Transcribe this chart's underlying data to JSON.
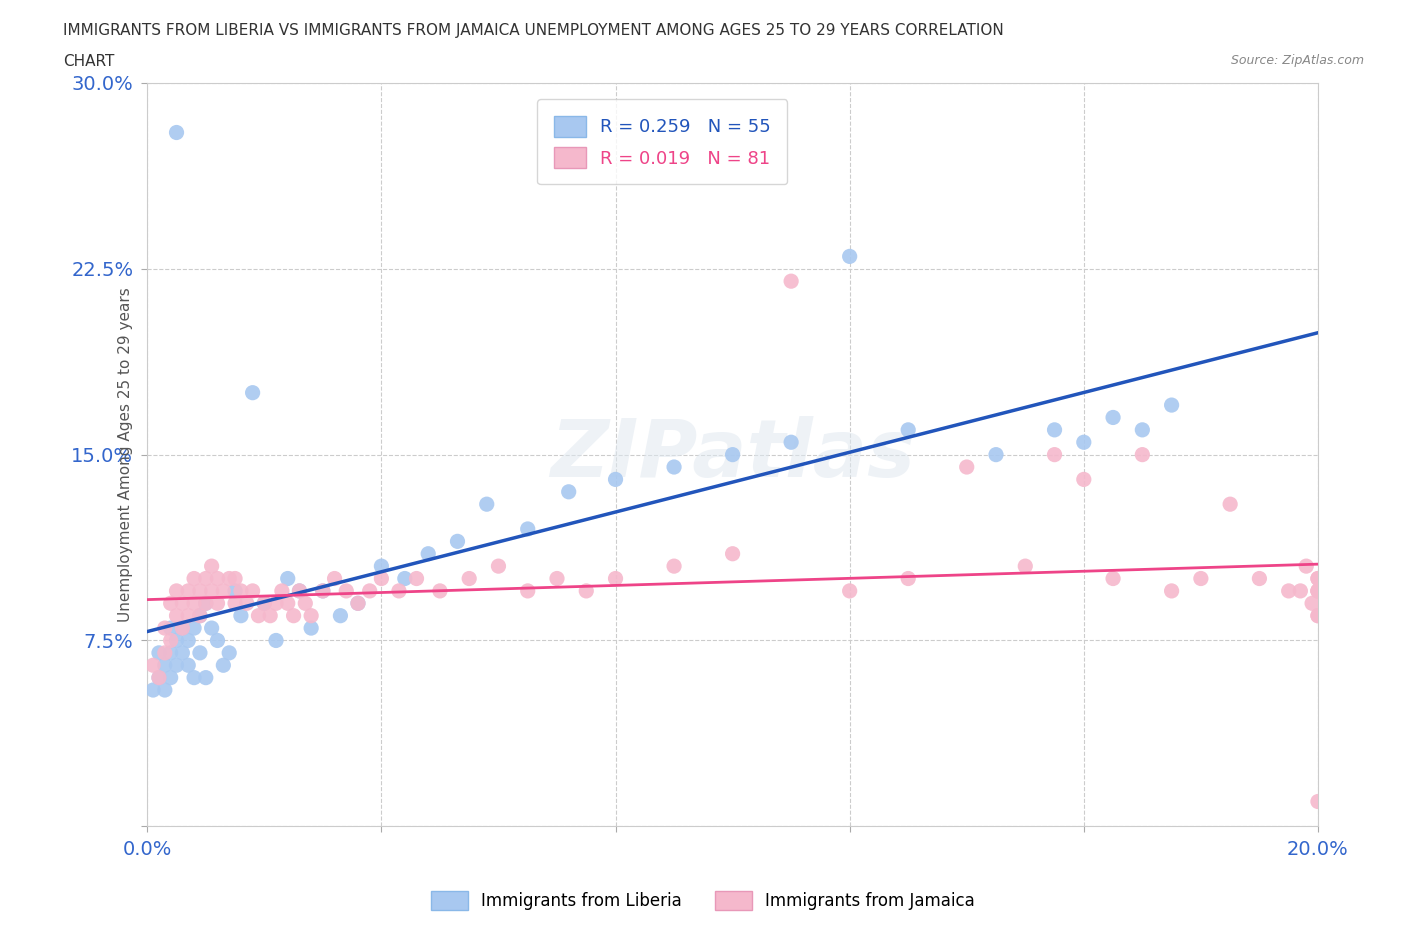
{
  "title_line1": "IMMIGRANTS FROM LIBERIA VS IMMIGRANTS FROM JAMAICA UNEMPLOYMENT AMONG AGES 25 TO 29 YEARS CORRELATION",
  "title_line2": "CHART",
  "source": "Source: ZipAtlas.com",
  "ylabel": "Unemployment Among Ages 25 to 29 years",
  "xlim": [
    0.0,
    0.2
  ],
  "ylim": [
    0.0,
    0.3
  ],
  "xticks": [
    0.0,
    0.04,
    0.08,
    0.12,
    0.16,
    0.2
  ],
  "yticks": [
    0.0,
    0.075,
    0.15,
    0.225,
    0.3
  ],
  "color_liberia": "#a8c8f0",
  "color_jamaica": "#f5b8cc",
  "line_color_liberia": "#2255bb",
  "line_color_jamaica": "#ee4488",
  "R_liberia": 0.259,
  "N_liberia": 55,
  "R_jamaica": 0.019,
  "N_jamaica": 81,
  "background_color": "#ffffff",
  "grid_color": "#cccccc",
  "liberia_x": [
    0.001,
    0.002,
    0.002,
    0.003,
    0.003,
    0.004,
    0.004,
    0.004,
    0.005,
    0.005,
    0.005,
    0.006,
    0.006,
    0.007,
    0.007,
    0.008,
    0.008,
    0.009,
    0.009,
    0.01,
    0.01,
    0.011,
    0.012,
    0.013,
    0.014,
    0.015,
    0.016,
    0.018,
    0.02,
    0.022,
    0.024,
    0.026,
    0.028,
    0.03,
    0.033,
    0.036,
    0.04,
    0.044,
    0.048,
    0.053,
    0.058,
    0.065,
    0.072,
    0.08,
    0.09,
    0.1,
    0.11,
    0.12,
    0.13,
    0.145,
    0.155,
    0.16,
    0.165,
    0.17,
    0.175
  ],
  "liberia_y": [
    0.055,
    0.06,
    0.07,
    0.055,
    0.065,
    0.06,
    0.07,
    0.08,
    0.065,
    0.075,
    0.28,
    0.07,
    0.08,
    0.065,
    0.075,
    0.06,
    0.08,
    0.07,
    0.085,
    0.06,
    0.09,
    0.08,
    0.075,
    0.065,
    0.07,
    0.095,
    0.085,
    0.175,
    0.09,
    0.075,
    0.1,
    0.095,
    0.08,
    0.095,
    0.085,
    0.09,
    0.105,
    0.1,
    0.11,
    0.115,
    0.13,
    0.12,
    0.135,
    0.14,
    0.145,
    0.15,
    0.155,
    0.23,
    0.16,
    0.15,
    0.16,
    0.155,
    0.165,
    0.16,
    0.17
  ],
  "jamaica_x": [
    0.001,
    0.002,
    0.003,
    0.003,
    0.004,
    0.004,
    0.005,
    0.005,
    0.006,
    0.006,
    0.007,
    0.007,
    0.008,
    0.008,
    0.009,
    0.009,
    0.01,
    0.01,
    0.011,
    0.011,
    0.012,
    0.012,
    0.013,
    0.014,
    0.015,
    0.015,
    0.016,
    0.017,
    0.018,
    0.019,
    0.02,
    0.021,
    0.022,
    0.023,
    0.024,
    0.025,
    0.026,
    0.027,
    0.028,
    0.03,
    0.032,
    0.034,
    0.036,
    0.038,
    0.04,
    0.043,
    0.046,
    0.05,
    0.055,
    0.06,
    0.065,
    0.07,
    0.075,
    0.08,
    0.09,
    0.1,
    0.11,
    0.12,
    0.13,
    0.14,
    0.15,
    0.155,
    0.16,
    0.165,
    0.17,
    0.175,
    0.18,
    0.185,
    0.19,
    0.195,
    0.197,
    0.198,
    0.199,
    0.2,
    0.2,
    0.2,
    0.2,
    0.2,
    0.2,
    0.2,
    0.2
  ],
  "jamaica_y": [
    0.065,
    0.06,
    0.07,
    0.08,
    0.075,
    0.09,
    0.085,
    0.095,
    0.08,
    0.09,
    0.085,
    0.095,
    0.09,
    0.1,
    0.085,
    0.095,
    0.09,
    0.1,
    0.095,
    0.105,
    0.09,
    0.1,
    0.095,
    0.1,
    0.09,
    0.1,
    0.095,
    0.09,
    0.095,
    0.085,
    0.09,
    0.085,
    0.09,
    0.095,
    0.09,
    0.085,
    0.095,
    0.09,
    0.085,
    0.095,
    0.1,
    0.095,
    0.09,
    0.095,
    0.1,
    0.095,
    0.1,
    0.095,
    0.1,
    0.105,
    0.095,
    0.1,
    0.095,
    0.1,
    0.105,
    0.11,
    0.22,
    0.095,
    0.1,
    0.145,
    0.105,
    0.15,
    0.14,
    0.1,
    0.15,
    0.095,
    0.1,
    0.13,
    0.1,
    0.095,
    0.095,
    0.105,
    0.09,
    0.1,
    0.095,
    0.085,
    0.095,
    0.085,
    0.1,
    0.095,
    0.01
  ]
}
